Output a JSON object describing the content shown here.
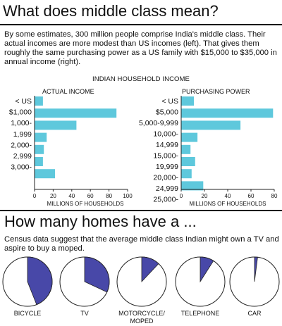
{
  "header": {
    "title": "What does middle class mean?",
    "intro": "By some estimates, 300 million people comprise India's middle class. Their actual incomes are more modest than US incomes (left). That gives them roughly the same purchasing power as a US family with $15,000 to $35,000 in annual income (right)."
  },
  "chart_title": "INDIAN HOUSEHOLD INCOME",
  "chart_data": [
    {
      "type": "bar",
      "orientation": "horizontal",
      "title": "ACTUAL INCOME",
      "xlabel": "MILLIONS OF HOUSEHOLDS",
      "xlim": [
        0,
        100
      ],
      "xticks": [
        "0",
        "20",
        "40",
        "60",
        "80",
        "100"
      ],
      "ytick_labels": [
        "< US",
        "$1,000",
        "1,000-",
        "1,999",
        "2,000-",
        "2,999",
        "3,000-"
      ],
      "values": [
        9,
        88,
        45,
        13,
        10,
        9,
        22
      ],
      "bar_color": "#5ec8dc"
    },
    {
      "type": "bar",
      "orientation": "horizontal",
      "title": "PURCHASING POWER",
      "xlabel": "MILLIONS OF HOUSEHOLDS",
      "xlim": [
        0,
        80
      ],
      "xticks": [
        "0",
        "20",
        "40",
        "60",
        "80"
      ],
      "ytick_labels": [
        "< US",
        "$5,000",
        "5,000-9,999",
        "10,000-",
        "14,999",
        "15,000-",
        "19,999",
        "20,000-",
        "24,999",
        "25,000-"
      ],
      "values": [
        11,
        79,
        51,
        14,
        8,
        12,
        9,
        19
      ],
      "bar_color": "#5ec8dc"
    },
    {
      "type": "pie",
      "title": "How many homes have a ...",
      "subtitle": "Census data suggest that the average middle class Indian might own a TV and aspire to buy a moped.",
      "categories": [
        "BICYCLE",
        "TV",
        "MOTORCYCLE/ MOPED",
        "TELEPHONE",
        "CAR"
      ],
      "values": [
        44,
        32,
        12,
        9,
        2
      ],
      "filled_color": "#4848a8",
      "empty_color": "#ffffff"
    }
  ]
}
